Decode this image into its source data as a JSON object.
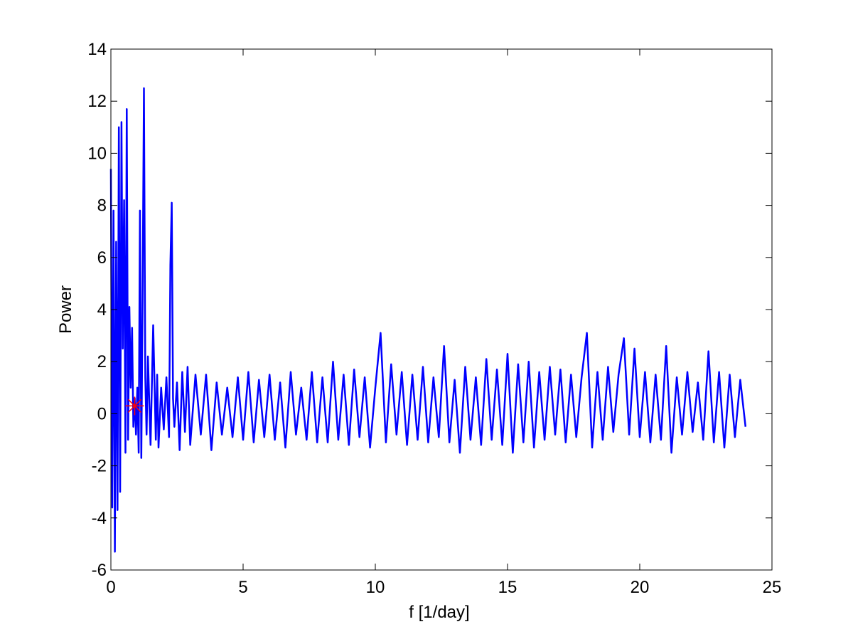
{
  "chart_data": {
    "type": "line",
    "xlabel": "f [1/day]",
    "ylabel": "Power",
    "xlim": [
      0,
      25
    ],
    "ylim": [
      -6,
      14
    ],
    "xticks": [
      0,
      5,
      10,
      15,
      20,
      25
    ],
    "yticks": [
      -6,
      -4,
      -2,
      0,
      2,
      4,
      6,
      8,
      10,
      12,
      14
    ],
    "grid": false,
    "series": [
      {
        "color": "#0000ff",
        "style": "line",
        "x": [
          0.0,
          0.05,
          0.1,
          0.15,
          0.2,
          0.25,
          0.3,
          0.35,
          0.4,
          0.45,
          0.5,
          0.55,
          0.6,
          0.65,
          0.7,
          0.75,
          0.8,
          0.85,
          0.9,
          0.95,
          1.0,
          1.05,
          1.1,
          1.15,
          1.2,
          1.25,
          1.3,
          1.35,
          1.4,
          1.5,
          1.6,
          1.7,
          1.75,
          1.8,
          1.9,
          2.0,
          2.1,
          2.2,
          2.25,
          2.3,
          2.35,
          2.4,
          2.5,
          2.6,
          2.7,
          2.8,
          2.9,
          3.0,
          3.2,
          3.4,
          3.6,
          3.8,
          4.0,
          4.2,
          4.4,
          4.6,
          4.8,
          5.0,
          5.2,
          5.4,
          5.6,
          5.8,
          6.0,
          6.2,
          6.4,
          6.6,
          6.8,
          7.0,
          7.2,
          7.4,
          7.6,
          7.8,
          8.0,
          8.2,
          8.4,
          8.6,
          8.8,
          9.0,
          9.2,
          9.4,
          9.6,
          9.8,
          10.0,
          10.2,
          10.4,
          10.6,
          10.8,
          11.0,
          11.2,
          11.4,
          11.6,
          11.8,
          12.0,
          12.2,
          12.4,
          12.6,
          12.8,
          13.0,
          13.2,
          13.4,
          13.6,
          13.8,
          14.0,
          14.2,
          14.4,
          14.6,
          14.8,
          15.0,
          15.2,
          15.4,
          15.6,
          15.8,
          16.0,
          16.2,
          16.4,
          16.6,
          16.8,
          17.0,
          17.2,
          17.4,
          17.6,
          17.8,
          18.0,
          18.2,
          18.4,
          18.6,
          18.8,
          19.0,
          19.2,
          19.4,
          19.6,
          19.8,
          20.0,
          20.2,
          20.4,
          20.6,
          20.8,
          21.0,
          21.2,
          21.4,
          21.6,
          21.8,
          22.0,
          22.2,
          22.4,
          22.6,
          22.8,
          23.0,
          23.2,
          23.4,
          23.6,
          23.8,
          24.0
        ],
        "y": [
          9.4,
          -3.6,
          7.8,
          -5.3,
          6.6,
          -3.7,
          11.0,
          -3.0,
          11.2,
          2.5,
          8.2,
          -1.5,
          11.7,
          -1.0,
          4.1,
          1.0,
          3.3,
          -0.5,
          0.6,
          -0.8,
          1.0,
          -1.5,
          7.8,
          -1.7,
          4.4,
          12.5,
          1.4,
          -0.8,
          2.2,
          -1.2,
          3.4,
          -1.0,
          1.5,
          -1.3,
          1.0,
          -0.6,
          1.4,
          -0.9,
          5.7,
          8.1,
          0.6,
          -0.5,
          1.2,
          -1.4,
          1.6,
          -0.7,
          1.8,
          -1.2,
          1.5,
          -0.8,
          1.5,
          -1.4,
          1.2,
          -0.8,
          1.0,
          -0.9,
          1.4,
          -1.0,
          1.6,
          -1.1,
          1.3,
          -0.9,
          1.5,
          -1.0,
          1.2,
          -1.3,
          1.6,
          -0.8,
          1.0,
          -1.0,
          1.6,
          -1.1,
          1.4,
          -1.1,
          2.0,
          -1.0,
          1.5,
          -1.2,
          1.7,
          -0.9,
          1.4,
          -1.3,
          1.0,
          3.1,
          -1.1,
          1.9,
          -0.8,
          1.6,
          -1.2,
          1.5,
          -1.0,
          1.8,
          -1.1,
          1.4,
          -0.9,
          2.6,
          -1.1,
          1.3,
          -1.5,
          1.8,
          -1.0,
          1.4,
          -1.2,
          2.1,
          -1.0,
          1.7,
          -1.2,
          2.3,
          -1.5,
          1.9,
          -1.1,
          2.0,
          -1.3,
          1.6,
          -1.0,
          1.8,
          -0.8,
          1.7,
          -1.1,
          1.5,
          -0.9,
          1.4,
          3.1,
          -1.3,
          1.6,
          -1.0,
          1.8,
          -0.7,
          1.5,
          2.9,
          -0.8,
          2.5,
          -0.9,
          1.6,
          -1.1,
          1.5,
          -1.0,
          2.6,
          -1.5,
          1.4,
          -0.8,
          1.6,
          -0.7,
          1.2,
          -1.0,
          2.4,
          -1.1,
          1.6,
          -1.3,
          1.5,
          -0.9,
          1.3,
          -0.5
        ]
      },
      {
        "color": "#ff0000",
        "style": "marker",
        "marker": "asterisk",
        "x": [
          0.9
        ],
        "y": [
          0.3
        ]
      }
    ]
  }
}
